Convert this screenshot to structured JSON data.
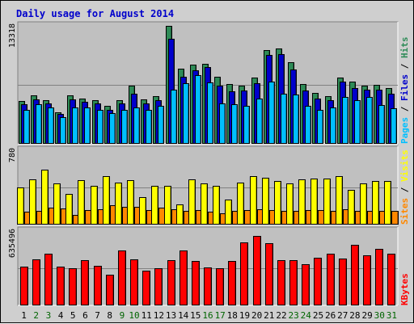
{
  "chart_data": {
    "type": "bar",
    "title": "Daily usage for August 2014",
    "categories": [
      "1",
      "2",
      "3",
      "4",
      "5",
      "6",
      "7",
      "8",
      "9",
      "10",
      "11",
      "12",
      "13",
      "14",
      "15",
      "16",
      "17",
      "18",
      "19",
      "20",
      "21",
      "22",
      "23",
      "24",
      "25",
      "26",
      "27",
      "28",
      "29",
      "30",
      "31"
    ],
    "weekend_days": [
      "2",
      "3",
      "9",
      "10",
      "16",
      "17",
      "23",
      "24",
      "30",
      "31"
    ],
    "colors": {
      "hits": "#2e8b57",
      "files": "#0000cc",
      "pages": "#00bfff",
      "visits": "#ffff00",
      "sites": "#ff8800",
      "kbytes": "#ff0000",
      "weekday_label": "#000000",
      "weekend_label": "#006400",
      "plot_bg": "#c0c0c0",
      "frame_bg": "#cfcfcf",
      "title": "#0000cc"
    },
    "panels": [
      {
        "id": "hits-files-pages",
        "ymax_label": "13318",
        "ylim": [
          0,
          13318
        ],
        "series": [
          {
            "name": "Hits",
            "values": [
              4800,
              5500,
              4950,
              3600,
              5500,
              5100,
              4900,
              4250,
              4950,
              6550,
              5050,
              5350,
              13318,
              8450,
              8900,
              9050,
              7550,
              6750,
              6550,
              7450,
              10550,
              10800,
              9250,
              6750,
              5750,
              5350,
              7450,
              7050,
              6550,
              6650,
              6250
            ]
          },
          {
            "name": "Files",
            "values": [
              4450,
              5000,
              4550,
              3400,
              5050,
              4750,
              4550,
              3850,
              4550,
              5700,
              4550,
              4900,
              11900,
              7600,
              8300,
              8650,
              6550,
              5950,
              6000,
              6850,
              10000,
              10100,
              8350,
              6000,
              5100,
              4900,
              7000,
              6300,
              6150,
              6100,
              5650
            ]
          },
          {
            "name": "Pages",
            "values": [
              3800,
              4500,
              4100,
              3050,
              4150,
              4150,
              3800,
              3450,
              3800,
              4150,
              3800,
              4300,
              6100,
              6850,
              7750,
              6900,
              4550,
              4450,
              4250,
              5100,
              7000,
              5700,
              5550,
              4250,
              3800,
              4100,
              5250,
              4950,
              5250,
              4400,
              4050
            ]
          }
        ]
      },
      {
        "id": "visits-sites",
        "ymax_label": "780",
        "ylim": [
          0,
          780
        ],
        "series": [
          {
            "name": "Visits",
            "values": [
              390,
              475,
              580,
              435,
              320,
              470,
              410,
              510,
              445,
              465,
              285,
              405,
              405,
              215,
              475,
              435,
              405,
              265,
              445,
              505,
              495,
              460,
              430,
              475,
              485,
              485,
              510,
              365,
              430,
              455,
              460
            ]
          },
          {
            "name": "Sites",
            "values": [
              135,
              145,
              175,
              170,
              100,
              155,
              160,
              200,
              185,
              185,
              150,
              175,
              160,
              140,
              150,
              135,
              115,
              140,
              155,
              165,
              150,
              145,
              140,
              155,
              150,
              145,
              160,
              140,
              145,
              145,
              145
            ]
          }
        ]
      },
      {
        "id": "kbytes",
        "ymax_label": "635496",
        "ylim": [
          0,
          635496
        ],
        "series": [
          {
            "name": "KBytes",
            "values": [
              330000,
              395000,
              440000,
              330000,
              315000,
              385000,
              340000,
              265000,
              470000,
              395000,
              300000,
              315000,
              385000,
              470000,
              380000,
              325000,
              315000,
              380000,
              540000,
              595000,
              530000,
              385000,
              385000,
              350000,
              405000,
              440000,
              400000,
              515000,
              430000,
              485000,
              440000
            ]
          }
        ]
      }
    ],
    "legend_panels": [
      {
        "parts": [
          {
            "text": "Pages",
            "color": "#00bfff"
          },
          {
            "text": " / ",
            "color": "#000000"
          },
          {
            "text": "Files",
            "color": "#0000cc"
          },
          {
            "text": " / ",
            "color": "#000000"
          },
          {
            "text": "Hits",
            "color": "#2e8b57"
          }
        ]
      },
      {
        "parts": [
          {
            "text": "Sites",
            "color": "#ff8800"
          },
          {
            "text": " / ",
            "color": "#000000"
          },
          {
            "text": "Visits",
            "color": "#ffff00"
          }
        ]
      },
      {
        "parts": [
          {
            "text": "KBytes",
            "color": "#ff0000"
          }
        ]
      }
    ],
    "grid": true
  }
}
